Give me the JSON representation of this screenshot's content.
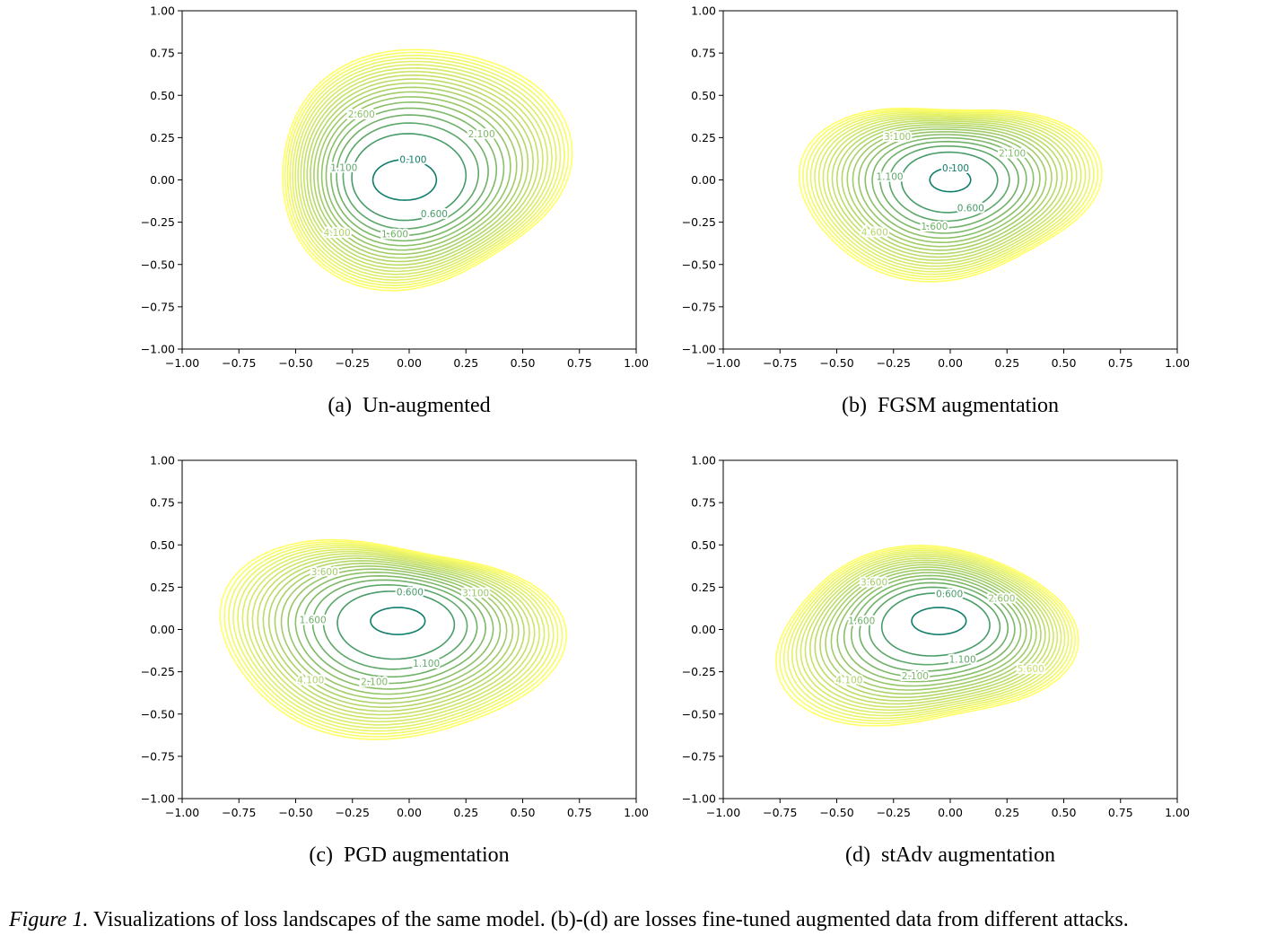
{
  "chart_data": [
    {
      "type": "contour",
      "tag": "(a)",
      "caption": "Un-augmented",
      "xlim": [
        -1,
        1
      ],
      "ylim": [
        -1,
        1
      ],
      "xticks": [
        {
          "value": -1,
          "label": "−1.00"
        },
        {
          "value": -0.75,
          "label": "−0.75"
        },
        {
          "value": -0.5,
          "label": "−0.50"
        },
        {
          "value": -0.25,
          "label": "−0.25"
        },
        {
          "value": 0,
          "label": "0.00"
        },
        {
          "value": 0.25,
          "label": "0.25"
        },
        {
          "value": 0.5,
          "label": "0.50"
        },
        {
          "value": 0.75,
          "label": "0.75"
        },
        {
          "value": 1,
          "label": "1.00"
        }
      ],
      "yticks": [
        {
          "value": -1,
          "label": "−1.00"
        },
        {
          "value": -0.75,
          "label": "−0.75"
        },
        {
          "value": -0.5,
          "label": "−0.50"
        },
        {
          "value": -0.25,
          "label": "−0.25"
        },
        {
          "value": 0,
          "label": "0.00"
        },
        {
          "value": 0.25,
          "label": "0.25"
        },
        {
          "value": 0.5,
          "label": "0.50"
        },
        {
          "value": 0.75,
          "label": "0.75"
        },
        {
          "value": 1,
          "label": "1.00"
        }
      ],
      "levels": [
        0.1,
        0.6,
        1.1,
        1.6,
        2.1,
        2.6,
        3.1,
        3.6,
        4.1,
        4.6,
        5.1,
        5.6,
        6.1,
        6.6,
        7.1,
        7.6,
        8.1,
        8.6,
        9.1,
        9.6
      ],
      "labeled_levels": [
        {
          "value": 0.1,
          "label": "0.100"
        },
        {
          "value": 0.6,
          "label": "0.600"
        },
        {
          "value": 1.1,
          "label": "1.100"
        },
        {
          "value": 1.6,
          "label": "1.600"
        },
        {
          "value": 2.1,
          "label": "2.100"
        },
        {
          "value": 2.6,
          "label": "2.600"
        },
        {
          "value": 4.1,
          "label": "4.100"
        }
      ]
    },
    {
      "type": "contour",
      "tag": "(b)",
      "caption": "FGSM augmentation",
      "xlim": [
        -1,
        1
      ],
      "ylim": [
        -1,
        1
      ],
      "xticks": [
        {
          "value": -1,
          "label": "−1.00"
        },
        {
          "value": -0.75,
          "label": "−0.75"
        },
        {
          "value": -0.5,
          "label": "−0.50"
        },
        {
          "value": -0.25,
          "label": "−0.25"
        },
        {
          "value": 0,
          "label": "0.00"
        },
        {
          "value": 0.25,
          "label": "0.25"
        },
        {
          "value": 0.5,
          "label": "0.50"
        },
        {
          "value": 0.75,
          "label": "0.75"
        },
        {
          "value": 1,
          "label": "1.00"
        }
      ],
      "yticks": [
        {
          "value": -1,
          "label": "−1.00"
        },
        {
          "value": -0.75,
          "label": "−0.75"
        },
        {
          "value": -0.5,
          "label": "−0.50"
        },
        {
          "value": -0.25,
          "label": "−0.25"
        },
        {
          "value": 0,
          "label": "0.00"
        },
        {
          "value": 0.25,
          "label": "0.25"
        },
        {
          "value": 0.5,
          "label": "0.50"
        },
        {
          "value": 0.75,
          "label": "0.75"
        },
        {
          "value": 1,
          "label": "1.00"
        }
      ],
      "levels": [
        0.1,
        0.6,
        1.1,
        1.6,
        2.1,
        2.6,
        3.1,
        3.6,
        4.1,
        4.6,
        5.1,
        5.6,
        6.1,
        6.6,
        7.1,
        7.6,
        8.1,
        8.6,
        9.1,
        9.6
      ],
      "labeled_levels": [
        {
          "value": 0.1,
          "label": "0.100"
        },
        {
          "value": 0.6,
          "label": "0.600"
        },
        {
          "value": 1.1,
          "label": "1.100"
        },
        {
          "value": 1.6,
          "label": "1.600"
        },
        {
          "value": 2.1,
          "label": "2.100"
        },
        {
          "value": 3.1,
          "label": "3.100"
        },
        {
          "value": 4.6,
          "label": "4.600"
        }
      ]
    },
    {
      "type": "contour",
      "tag": "(c)",
      "caption": "PGD augmentation",
      "xlim": [
        -1,
        1
      ],
      "ylim": [
        -1,
        1
      ],
      "xticks": [
        {
          "value": -1,
          "label": "−1.00"
        },
        {
          "value": -0.75,
          "label": "−0.75"
        },
        {
          "value": -0.5,
          "label": "−0.50"
        },
        {
          "value": -0.25,
          "label": "−0.25"
        },
        {
          "value": 0,
          "label": "0.00"
        },
        {
          "value": 0.25,
          "label": "0.25"
        },
        {
          "value": 0.5,
          "label": "0.50"
        },
        {
          "value": 0.75,
          "label": "0.75"
        },
        {
          "value": 1,
          "label": "1.00"
        }
      ],
      "yticks": [
        {
          "value": -1,
          "label": "−1.00"
        },
        {
          "value": -0.75,
          "label": "−0.75"
        },
        {
          "value": -0.5,
          "label": "−0.50"
        },
        {
          "value": -0.25,
          "label": "−0.25"
        },
        {
          "value": 0,
          "label": "0.00"
        },
        {
          "value": 0.25,
          "label": "0.25"
        },
        {
          "value": 0.5,
          "label": "0.50"
        },
        {
          "value": 0.75,
          "label": "0.75"
        },
        {
          "value": 1,
          "label": "1.00"
        }
      ],
      "levels": [
        0.1,
        0.6,
        1.1,
        1.6,
        2.1,
        2.6,
        3.1,
        3.6,
        4.1,
        4.6,
        5.1,
        5.6,
        6.1,
        6.6,
        7.1,
        7.6,
        8.1,
        8.6,
        9.1,
        9.6
      ],
      "labeled_levels": [
        {
          "value": 0.6,
          "label": "0.600"
        },
        {
          "value": 1.1,
          "label": "1.100"
        },
        {
          "value": 1.6,
          "label": "1.600"
        },
        {
          "value": 2.1,
          "label": "2.100"
        },
        {
          "value": 3.1,
          "label": "3.100"
        },
        {
          "value": 3.6,
          "label": "3.600"
        },
        {
          "value": 4.1,
          "label": "4.100"
        }
      ]
    },
    {
      "type": "contour",
      "tag": "(d)",
      "caption": "stAdv augmentation",
      "xlim": [
        -1,
        1
      ],
      "ylim": [
        -1,
        1
      ],
      "xticks": [
        {
          "value": -1,
          "label": "−1.00"
        },
        {
          "value": -0.75,
          "label": "−0.75"
        },
        {
          "value": -0.5,
          "label": "−0.50"
        },
        {
          "value": -0.25,
          "label": "−0.25"
        },
        {
          "value": 0,
          "label": "0.00"
        },
        {
          "value": 0.25,
          "label": "0.25"
        },
        {
          "value": 0.5,
          "label": "0.50"
        },
        {
          "value": 0.75,
          "label": "0.75"
        },
        {
          "value": 1,
          "label": "1.00"
        }
      ],
      "yticks": [
        {
          "value": -1,
          "label": "−1.00"
        },
        {
          "value": -0.75,
          "label": "−0.75"
        },
        {
          "value": -0.5,
          "label": "−0.50"
        },
        {
          "value": -0.25,
          "label": "−0.25"
        },
        {
          "value": 0,
          "label": "0.00"
        },
        {
          "value": 0.25,
          "label": "0.25"
        },
        {
          "value": 0.5,
          "label": "0.50"
        },
        {
          "value": 0.75,
          "label": "0.75"
        },
        {
          "value": 1,
          "label": "1.00"
        }
      ],
      "levels": [
        0.1,
        0.6,
        1.1,
        1.6,
        2.1,
        2.6,
        3.1,
        3.6,
        4.1,
        4.6,
        5.1,
        5.6,
        6.1,
        6.6,
        7.1,
        7.6,
        8.1,
        8.6,
        9.1,
        9.6
      ],
      "labeled_levels": [
        {
          "value": 0.6,
          "label": "0.600"
        },
        {
          "value": 1.1,
          "label": "1.100"
        },
        {
          "value": 1.6,
          "label": "1.600"
        },
        {
          "value": 2.1,
          "label": "2.100"
        },
        {
          "value": 2.6,
          "label": "2.600"
        },
        {
          "value": 3.6,
          "label": "3.600"
        },
        {
          "value": 4.1,
          "label": "4.100"
        },
        {
          "value": 5.6,
          "label": "5.600"
        }
      ]
    }
  ],
  "figure_caption": {
    "label": "Figure 1.",
    "text": "Visualizations of loss landscapes of the same model. (b)-(d) are losses fine-tuned augmented data from different attacks."
  }
}
